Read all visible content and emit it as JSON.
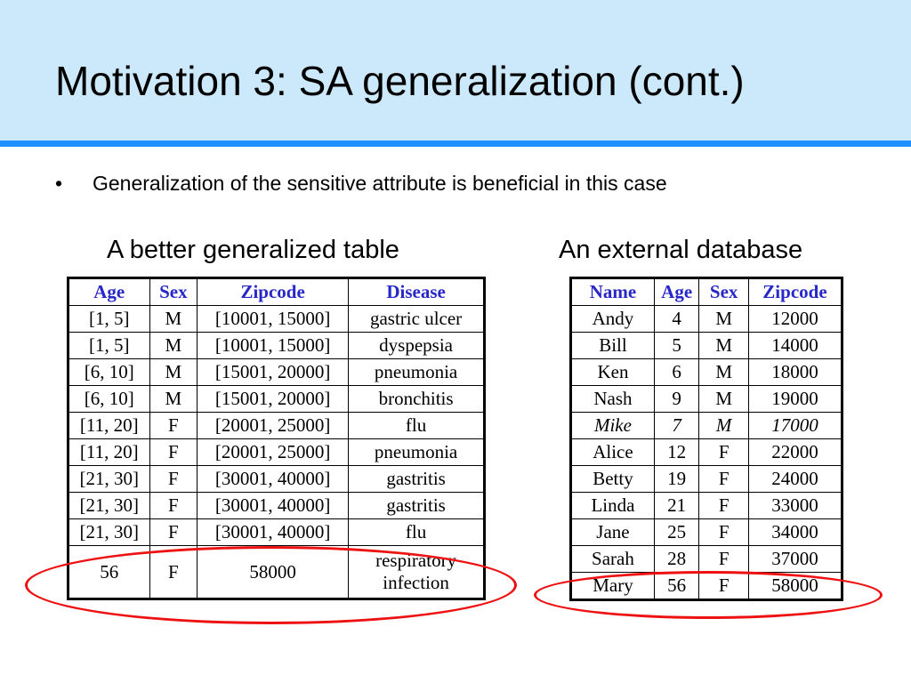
{
  "slide": {
    "title": "Motivation 3: SA generalization (cont.)",
    "bullet_marker": "•",
    "bullet_text": "Generalization of the sensitive attribute is beneficial in this case"
  },
  "left_table": {
    "caption": "A better generalized table",
    "headers": [
      "Age",
      "Sex",
      "Zipcode",
      "Disease"
    ],
    "rows": [
      [
        "[1, 5]",
        "M",
        "[10001, 15000]",
        "gastric ulcer"
      ],
      [
        "[1, 5]",
        "M",
        "[10001, 15000]",
        "dyspepsia"
      ],
      [
        "[6, 10]",
        "M",
        "[15001, 20000]",
        "pneumonia"
      ],
      [
        "[6, 10]",
        "M",
        "[15001, 20000]",
        "bronchitis"
      ],
      [
        "[11, 20]",
        "F",
        "[20001, 25000]",
        "flu"
      ],
      [
        "[11, 20]",
        "F",
        "[20001, 25000]",
        "pneumonia"
      ],
      [
        "[21, 30]",
        "F",
        "[30001, 40000]",
        "gastritis"
      ],
      [
        "[21, 30]",
        "F",
        "[30001, 40000]",
        "gastritis"
      ],
      [
        "[21, 30]",
        "F",
        "[30001, 40000]",
        "flu"
      ],
      [
        "56",
        "F",
        "58000",
        "respiratory infection"
      ]
    ]
  },
  "right_table": {
    "caption": "An external database",
    "headers": [
      "Name",
      "Age",
      "Sex",
      "Zipcode"
    ],
    "rows": [
      [
        "Andy",
        "4",
        "M",
        "12000"
      ],
      [
        "Bill",
        "5",
        "M",
        "14000"
      ],
      [
        "Ken",
        "6",
        "M",
        "18000"
      ],
      [
        "Nash",
        "9",
        "M",
        "19000"
      ],
      [
        "Mike",
        "7",
        "M",
        "17000"
      ],
      [
        "Alice",
        "12",
        "F",
        "22000"
      ],
      [
        "Betty",
        "19",
        "F",
        "24000"
      ],
      [
        "Linda",
        "21",
        "F",
        "33000"
      ],
      [
        "Jane",
        "25",
        "F",
        "34000"
      ],
      [
        "Sarah",
        "28",
        "F",
        "37000"
      ],
      [
        "Mary",
        "56",
        "F",
        "58000"
      ]
    ],
    "italic_row": 4
  },
  "colors": {
    "header_background": "#cce9fb",
    "header_rule": "#1e90ff",
    "table_header_text": "#2828c8",
    "highlight_ellipse": "#e11111"
  }
}
